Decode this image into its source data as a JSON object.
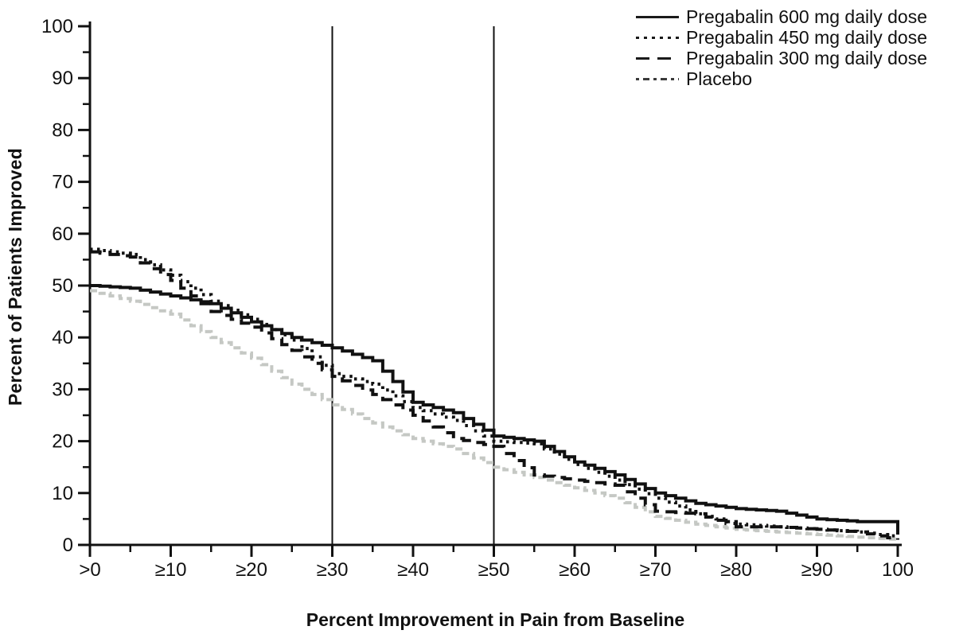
{
  "figure": {
    "background": "#ffffff",
    "curve_color": "#111111",
    "placebo_curve_color": "#c5c8c4"
  },
  "legend": {
    "entries": [
      {
        "label": "Pregabalin 600 mg daily dose",
        "style": "solid",
        "color": "#1a1a1a"
      },
      {
        "label": "Pregabalin 450 mg daily dose",
        "style": "dotted",
        "color": "#1a1a1a"
      },
      {
        "label": "Pregabalin 300 mg daily dose",
        "style": "dashed",
        "color": "#1a1a1a"
      },
      {
        "label": "Placebo",
        "style": "dashdot",
        "color": "#3a3a3a"
      }
    ]
  },
  "chart_data": {
    "type": "line",
    "subtype": "step",
    "title": "",
    "xlabel": "Percent Improvement in Pain from Baseline",
    "ylabel": "Percent of Patients Improved",
    "xlim": [
      0,
      100
    ],
    "ylim": [
      0,
      100
    ],
    "grid": false,
    "legend_position": "top-right",
    "x_tick_values": [
      0,
      10,
      20,
      30,
      40,
      50,
      60,
      70,
      80,
      90,
      100
    ],
    "x_tick_labels": [
      ">0",
      "≥10",
      "≥20",
      "≥30",
      "≥40",
      "≥50",
      "≥60",
      "≥70",
      "≥80",
      "≥90",
      "100"
    ],
    "y_tick_values": [
      0,
      10,
      20,
      30,
      40,
      50,
      60,
      70,
      80,
      90,
      100
    ],
    "y_tick_labels": [
      "0",
      "10",
      "20",
      "30",
      "40",
      "50",
      "60",
      "70",
      "80",
      "90",
      "100"
    ],
    "minor_tick_step": 5,
    "reference_lines_x": [
      30,
      50
    ],
    "series": [
      {
        "name": "Placebo",
        "style": "dashdot",
        "color": "#c5c8c4",
        "points": [
          [
            0,
            49
          ],
          [
            5,
            47
          ],
          [
            10,
            44.5
          ],
          [
            15,
            40
          ],
          [
            20,
            36
          ],
          [
            25,
            31
          ],
          [
            30,
            27
          ],
          [
            35,
            23.5
          ],
          [
            40,
            20.5
          ],
          [
            45,
            18.5
          ],
          [
            50,
            15
          ],
          [
            55,
            13
          ],
          [
            60,
            11
          ],
          [
            65,
            9
          ],
          [
            70,
            5.5
          ],
          [
            75,
            4
          ],
          [
            80,
            3
          ],
          [
            85,
            2.5
          ],
          [
            90,
            2
          ],
          [
            95,
            1.5
          ],
          [
            100,
            1
          ]
        ]
      },
      {
        "name": "Pregabalin 300 mg daily dose",
        "style": "dashed",
        "color": "#111111",
        "points": [
          [
            0,
            56.5
          ],
          [
            5,
            55.5
          ],
          [
            10,
            51
          ],
          [
            15,
            45
          ],
          [
            20,
            42
          ],
          [
            25,
            37.5
          ],
          [
            30,
            32.5
          ],
          [
            35,
            29
          ],
          [
            40,
            25
          ],
          [
            45,
            20.5
          ],
          [
            50,
            19
          ],
          [
            55,
            13.5
          ],
          [
            60,
            12.5
          ],
          [
            65,
            11.5
          ],
          [
            70,
            6.5
          ],
          [
            75,
            6
          ],
          [
            80,
            3.5
          ],
          [
            85,
            3.5
          ],
          [
            90,
            3
          ],
          [
            95,
            2.5
          ],
          [
            100,
            1
          ]
        ]
      },
      {
        "name": "Pregabalin 450 mg daily dose",
        "style": "dotted",
        "color": "#111111",
        "points": [
          [
            0,
            57
          ],
          [
            5,
            56
          ],
          [
            10,
            52
          ],
          [
            15,
            47
          ],
          [
            20,
            43.5
          ],
          [
            25,
            39.5
          ],
          [
            30,
            33
          ],
          [
            35,
            31
          ],
          [
            40,
            26.5
          ],
          [
            45,
            24
          ],
          [
            50,
            20
          ],
          [
            55,
            19.5
          ],
          [
            60,
            15.5
          ],
          [
            65,
            12.5
          ],
          [
            70,
            9
          ],
          [
            75,
            6
          ],
          [
            80,
            4
          ],
          [
            85,
            3.5
          ],
          [
            90,
            3
          ],
          [
            95,
            2.5
          ],
          [
            100,
            1.5
          ]
        ]
      },
      {
        "name": "Pregabalin 600 mg daily dose",
        "style": "solid",
        "color": "#111111",
        "points": [
          [
            0,
            50
          ],
          [
            5,
            49.5
          ],
          [
            10,
            48
          ],
          [
            15,
            46.5
          ],
          [
            20,
            43
          ],
          [
            25,
            40
          ],
          [
            30,
            38
          ],
          [
            35,
            35.5
          ],
          [
            40,
            27.5
          ],
          [
            45,
            25.5
          ],
          [
            50,
            21
          ],
          [
            55,
            20
          ],
          [
            60,
            16
          ],
          [
            65,
            13.5
          ],
          [
            70,
            10
          ],
          [
            75,
            8
          ],
          [
            80,
            7
          ],
          [
            85,
            6.5
          ],
          [
            90,
            5
          ],
          [
            95,
            4.5
          ],
          [
            99,
            4.5
          ],
          [
            100,
            2
          ]
        ]
      }
    ]
  }
}
